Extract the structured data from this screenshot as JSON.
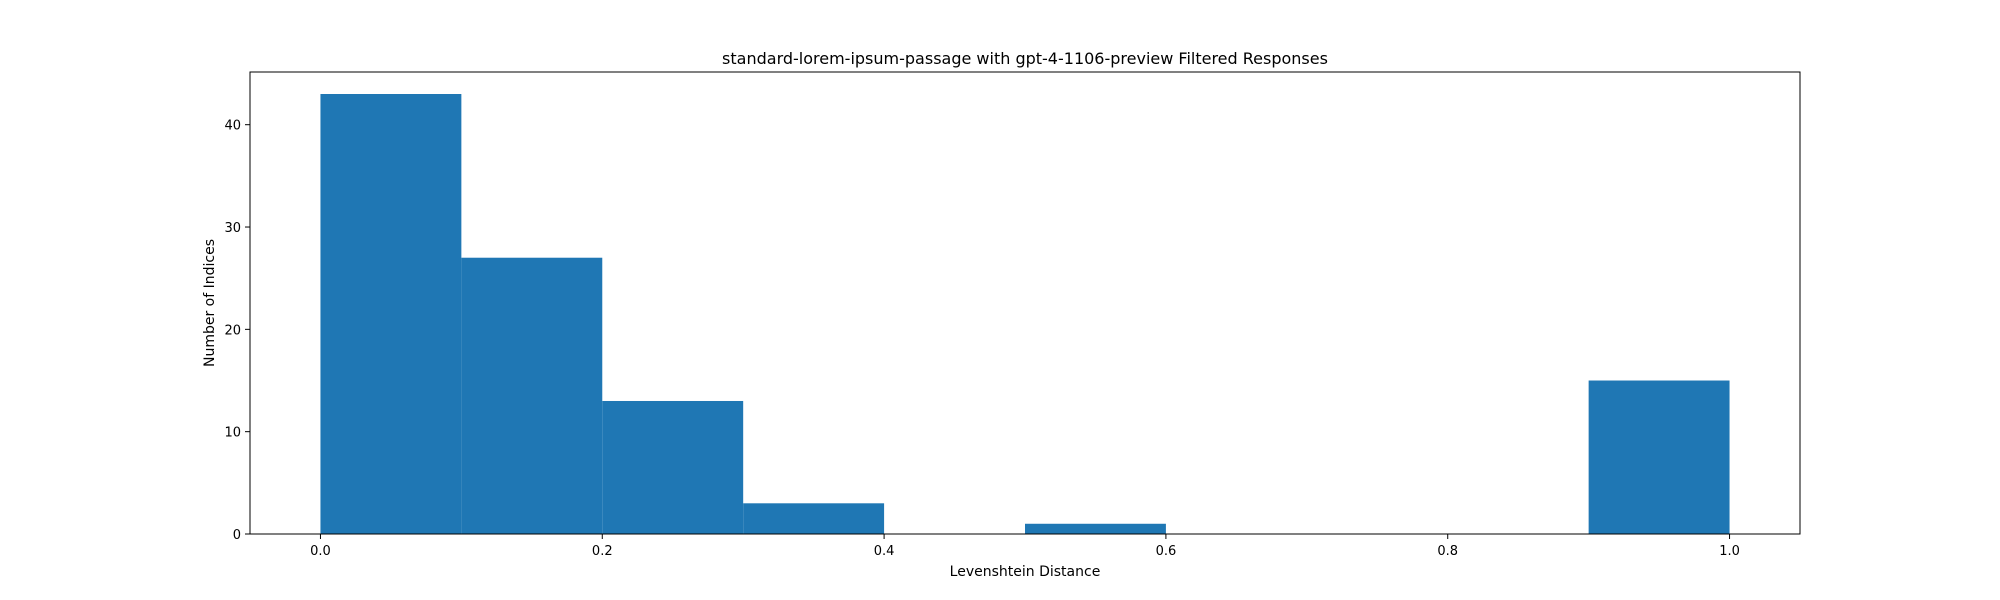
{
  "chart_data": {
    "type": "bar",
    "title": "standard-lorem-ipsum-passage with gpt-4-1106-preview Filtered Responses",
    "xlabel": "Levenshtein Distance",
    "ylabel": "Number of Indices",
    "xlim": [
      -0.05,
      1.05
    ],
    "ylim": [
      0,
      45.15
    ],
    "x_ticks": [
      0.0,
      0.2,
      0.4,
      0.6,
      0.8,
      1.0
    ],
    "x_tick_labels": [
      "0.0",
      "0.2",
      "0.4",
      "0.6",
      "0.8",
      "1.0"
    ],
    "y_ticks": [
      0,
      10,
      20,
      30,
      40
    ],
    "y_tick_labels": [
      "0",
      "10",
      "20",
      "30",
      "40"
    ],
    "bin_edges": [
      0.0,
      0.1,
      0.2,
      0.3,
      0.4,
      0.5,
      0.6,
      0.7,
      0.8,
      0.9,
      1.0
    ],
    "values": [
      43,
      27,
      13,
      3,
      0,
      1,
      0,
      0,
      0,
      15
    ],
    "bar_color": "#1f77b4",
    "grid": false,
    "legend": "none"
  }
}
